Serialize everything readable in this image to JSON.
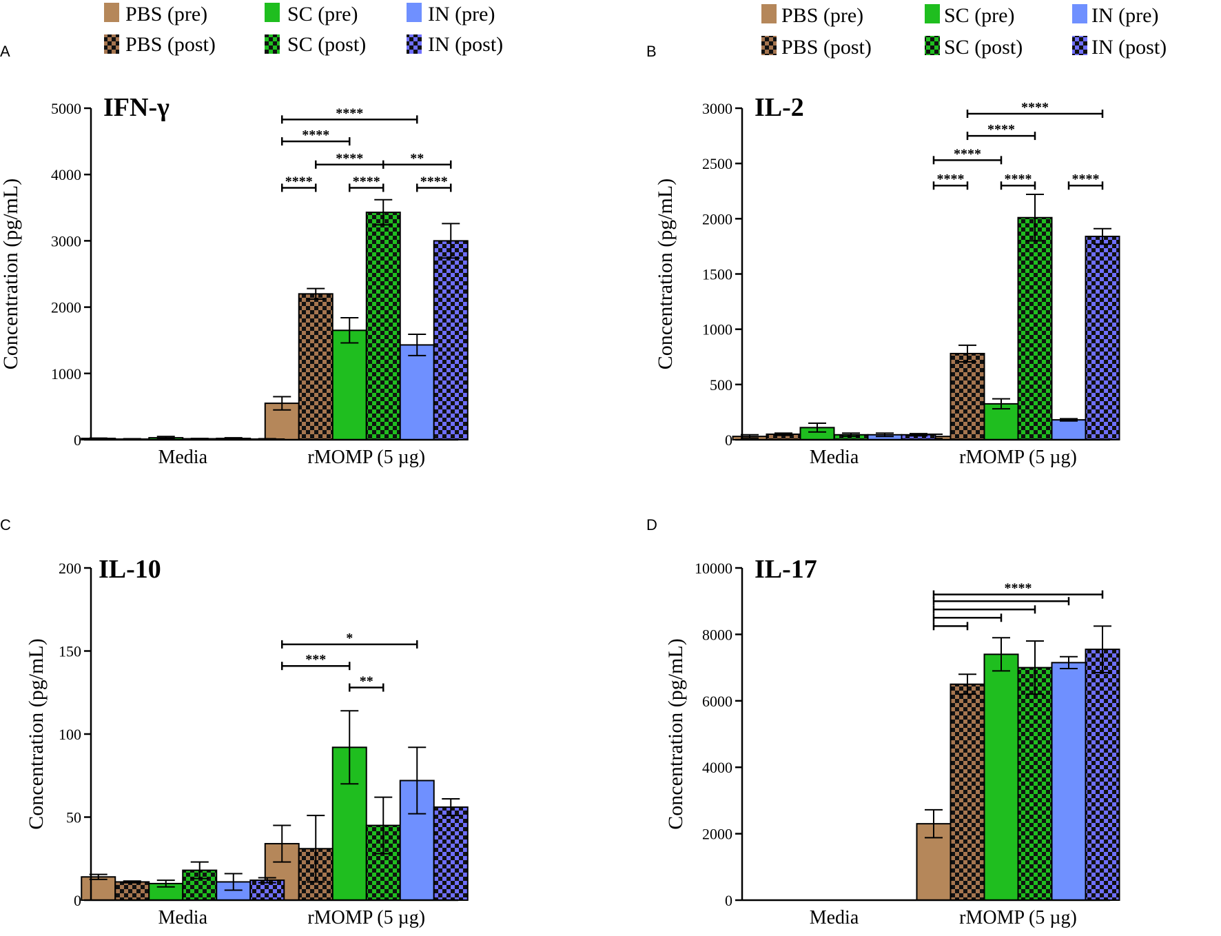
{
  "figure": {
    "legend": [
      {
        "key": "pbs_pre",
        "label": "PBS (pre)",
        "color": "#b5875a",
        "pattern": "solid"
      },
      {
        "key": "pbs_post",
        "label": "PBS (post)",
        "color": "#a67650",
        "pattern": "checker"
      },
      {
        "key": "sc_pre",
        "label": "SC (pre)",
        "color": "#1fbe1f",
        "pattern": "solid"
      },
      {
        "key": "sc_post",
        "label": "SC (post)",
        "color": "#1fbe1f",
        "pattern": "checker"
      },
      {
        "key": "in_pre",
        "label": "IN (pre)",
        "color": "#6f90ff",
        "pattern": "solid"
      },
      {
        "key": "in_post",
        "label": "IN (post)",
        "color": "#6f6fff",
        "pattern": "checker"
      }
    ],
    "checker_dark": "#111111"
  },
  "chart_data": [
    {
      "panel": "A",
      "type": "bar",
      "title": "IFN-γ",
      "ylabel": "Concentration (pg/mL)",
      "xlabel": "",
      "categories": [
        "Media",
        "rMOMP (5 µg)"
      ],
      "ylim": [
        0,
        5000
      ],
      "yticks": [
        0,
        1000,
        2000,
        3000,
        4000,
        5000
      ],
      "series": [
        {
          "name": "PBS (pre)",
          "values": [
            20,
            550
          ],
          "errors": [
            5,
            100
          ]
        },
        {
          "name": "PBS (post)",
          "values": [
            10,
            2200
          ],
          "errors": [
            5,
            80
          ]
        },
        {
          "name": "SC (pre)",
          "values": [
            30,
            1650
          ],
          "errors": [
            20,
            190
          ]
        },
        {
          "name": "SC (post)",
          "values": [
            15,
            3430
          ],
          "errors": [
            5,
            190
          ]
        },
        {
          "name": "IN (pre)",
          "values": [
            20,
            1430
          ],
          "errors": [
            10,
            160
          ]
        },
        {
          "name": "IN (post)",
          "values": [
            10,
            3000
          ],
          "errors": [
            5,
            260
          ]
        }
      ],
      "significance": [
        {
          "cat": 1,
          "from": 0,
          "to": 1,
          "y": 3800,
          "label": "****"
        },
        {
          "cat": 1,
          "from": 2,
          "to": 3,
          "y": 3800,
          "label": "****"
        },
        {
          "cat": 1,
          "from": 4,
          "to": 5,
          "y": 3800,
          "label": "****"
        },
        {
          "cat": 1,
          "from": 1,
          "to": 3,
          "y": 4150,
          "label": "****"
        },
        {
          "cat": 1,
          "from": 3,
          "to": 5,
          "y": 4150,
          "label": "**"
        },
        {
          "cat": 1,
          "from": 0,
          "to": 2,
          "y": 4500,
          "label": "****"
        },
        {
          "cat": 1,
          "from": 0,
          "to": 4,
          "y": 4830,
          "label": "****"
        }
      ]
    },
    {
      "panel": "B",
      "type": "bar",
      "title": "IL-2",
      "ylabel": "Concentration (pg/mL)",
      "xlabel": "",
      "categories": [
        "Media",
        "rMOMP (5 µg)"
      ],
      "ylim": [
        0,
        3000
      ],
      "yticks": [
        0,
        500,
        1000,
        1500,
        2000,
        2500,
        3000
      ],
      "series": [
        {
          "name": "PBS (pre)",
          "values": [
            30,
            30
          ],
          "errors": [
            15,
            20
          ]
        },
        {
          "name": "PBS (post)",
          "values": [
            50,
            780
          ],
          "errors": [
            10,
            75
          ]
        },
        {
          "name": "SC (pre)",
          "values": [
            110,
            325
          ],
          "errors": [
            40,
            45
          ]
        },
        {
          "name": "SC (post)",
          "values": [
            45,
            2010
          ],
          "errors": [
            15,
            210
          ]
        },
        {
          "name": "IN (pre)",
          "values": [
            45,
            180
          ],
          "errors": [
            15,
            10
          ]
        },
        {
          "name": "IN (post)",
          "values": [
            45,
            1840
          ],
          "errors": [
            10,
            70
          ]
        }
      ],
      "significance": [
        {
          "cat": 1,
          "from": 0,
          "to": 1,
          "y": 2300,
          "label": "****"
        },
        {
          "cat": 1,
          "from": 2,
          "to": 3,
          "y": 2300,
          "label": "****"
        },
        {
          "cat": 1,
          "from": 4,
          "to": 5,
          "y": 2300,
          "label": "****"
        },
        {
          "cat": 1,
          "from": 0,
          "to": 2,
          "y": 2530,
          "label": "****"
        },
        {
          "cat": 1,
          "from": 1,
          "to": 3,
          "y": 2750,
          "label": "****"
        },
        {
          "cat": 1,
          "from": 1,
          "to": 5,
          "y": 2950,
          "label": "****"
        }
      ]
    },
    {
      "panel": "C",
      "type": "bar",
      "title": "IL-10",
      "ylabel": "Concentration (pg/mL)",
      "xlabel": "",
      "categories": [
        "Media",
        "rMOMP (5 µg)"
      ],
      "ylim": [
        0,
        200
      ],
      "yticks": [
        0,
        50,
        100,
        150,
        200
      ],
      "series": [
        {
          "name": "PBS (pre)",
          "values": [
            14,
            34
          ],
          "errors": [
            1.5,
            11
          ]
        },
        {
          "name": "PBS (post)",
          "values": [
            11,
            31
          ],
          "errors": [
            0.5,
            20
          ]
        },
        {
          "name": "SC (pre)",
          "values": [
            10,
            92
          ],
          "errors": [
            2,
            22
          ]
        },
        {
          "name": "SC (post)",
          "values": [
            18,
            45
          ],
          "errors": [
            5,
            17
          ]
        },
        {
          "name": "IN (pre)",
          "values": [
            11,
            72
          ],
          "errors": [
            5,
            20
          ]
        },
        {
          "name": "IN (post)",
          "values": [
            12,
            56
          ],
          "errors": [
            1.5,
            5
          ]
        }
      ],
      "significance": [
        {
          "cat": 1,
          "from": 2,
          "to": 3,
          "y": 128,
          "label": "**"
        },
        {
          "cat": 1,
          "from": 0,
          "to": 2,
          "y": 141,
          "label": "***"
        },
        {
          "cat": 1,
          "from": 0,
          "to": 4,
          "y": 154,
          "label": "*"
        }
      ]
    },
    {
      "panel": "D",
      "type": "bar",
      "title": "IL-17",
      "ylabel": "Concentration (pg/mL)",
      "xlabel": "",
      "categories": [
        "Media",
        "rMOMP (5 µg)"
      ],
      "ylim": [
        0,
        10000
      ],
      "yticks": [
        0,
        2000,
        4000,
        6000,
        8000,
        10000
      ],
      "series": [
        {
          "name": "PBS (pre)",
          "values": [
            0,
            2300
          ],
          "errors": [
            0,
            420
          ]
        },
        {
          "name": "PBS (post)",
          "values": [
            0,
            6500
          ],
          "errors": [
            0,
            300
          ]
        },
        {
          "name": "SC (pre)",
          "values": [
            0,
            7400
          ],
          "errors": [
            0,
            500
          ]
        },
        {
          "name": "SC (post)",
          "values": [
            0,
            7000
          ],
          "errors": [
            0,
            800
          ]
        },
        {
          "name": "IN (pre)",
          "values": [
            0,
            7150
          ],
          "errors": [
            0,
            180
          ]
        },
        {
          "name": "IN (post)",
          "values": [
            0,
            7550
          ],
          "errors": [
            0,
            700
          ]
        }
      ],
      "significance": [
        {
          "cat": 1,
          "from": 0,
          "to": 1,
          "y": 8250,
          "label": ""
        },
        {
          "cat": 1,
          "from": 0,
          "to": 2,
          "y": 8500,
          "label": ""
        },
        {
          "cat": 1,
          "from": 0,
          "to": 3,
          "y": 8750,
          "label": ""
        },
        {
          "cat": 1,
          "from": 0,
          "to": 4,
          "y": 9000,
          "label": ""
        },
        {
          "cat": 1,
          "from": 0,
          "to": 5,
          "y": 9200,
          "label": "****"
        }
      ]
    }
  ]
}
